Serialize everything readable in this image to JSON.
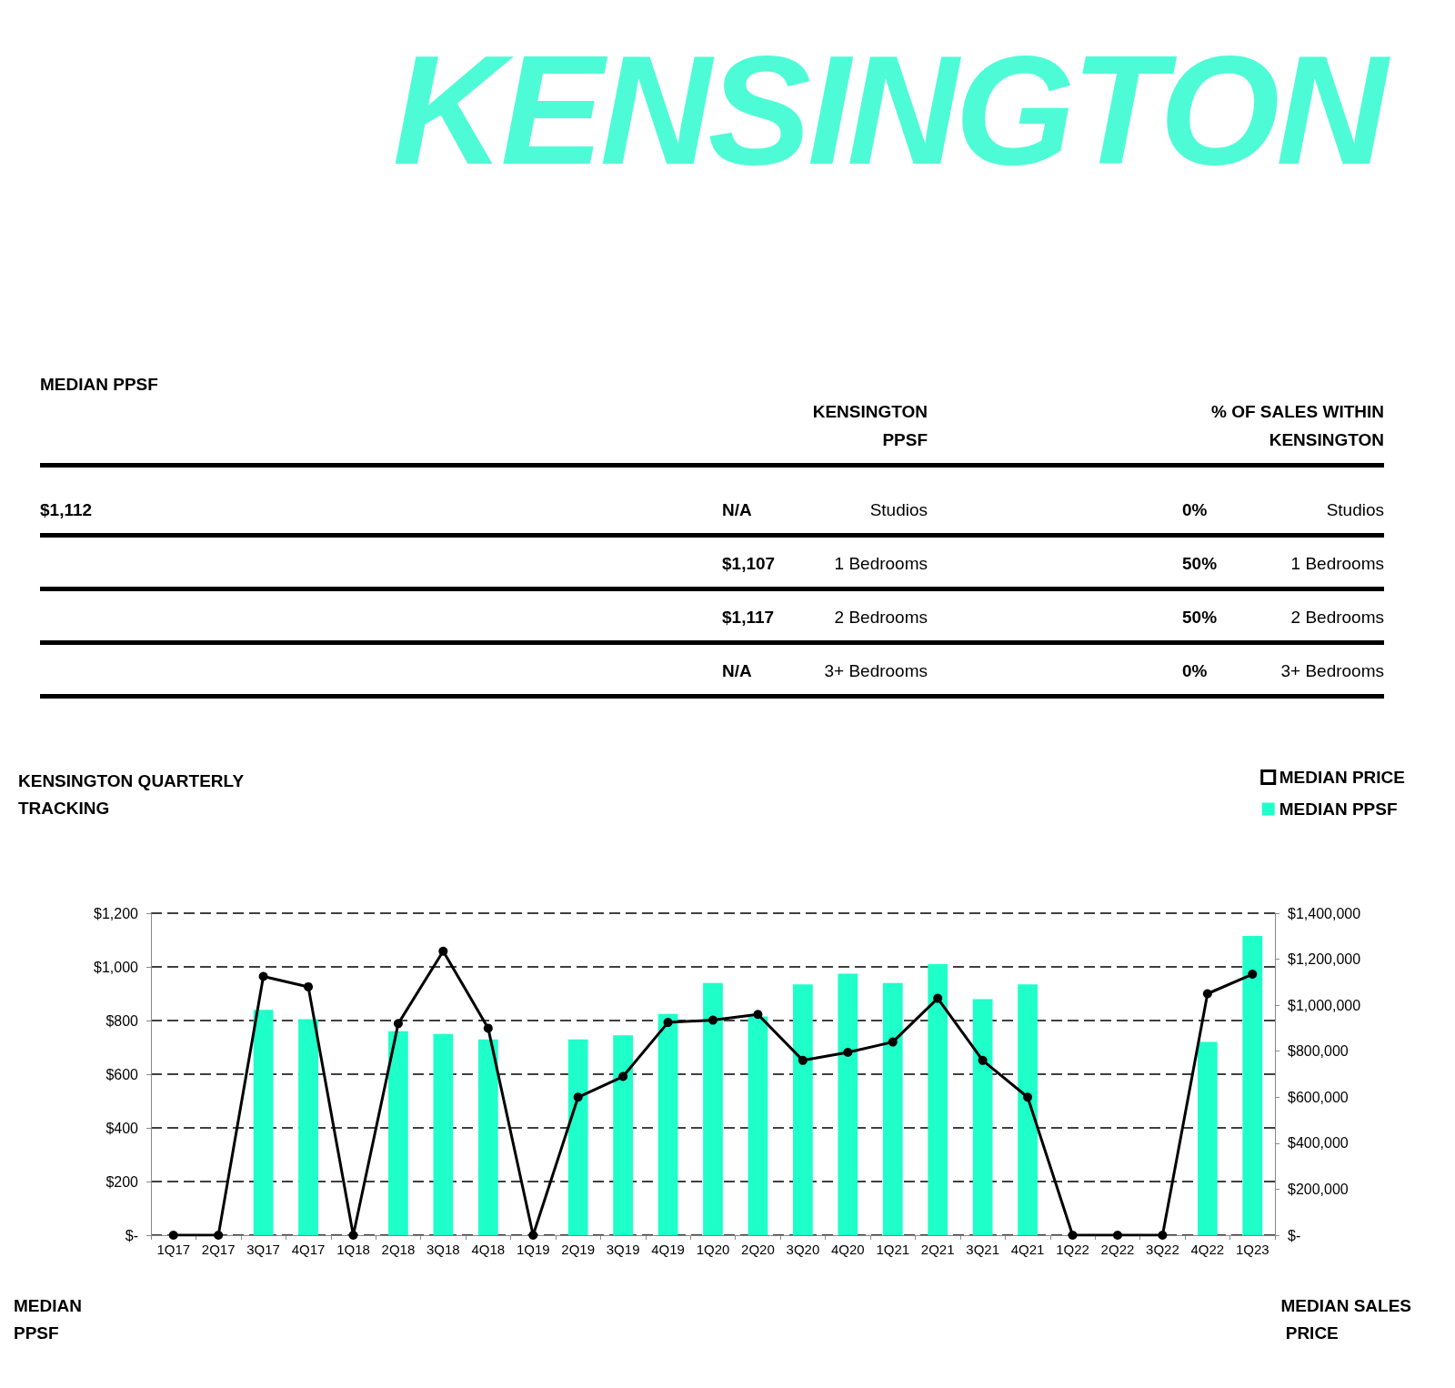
{
  "chart_data": [
    {
      "type": "other",
      "title": "KENSINGTON",
      "annotations": [
        "MEDIAN PPSF",
        "KENSINGTON PPSF",
        "% OF SALES WITHIN KENSINGTON",
        "$1,112",
        "N/A",
        "Studios",
        "0%",
        "Studios",
        "$1,107",
        "1 Bedrooms",
        "50%",
        "1 Bedrooms",
        "$1,117",
        "2 Bedrooms",
        "50%",
        "2 Bedrooms",
        "N/A",
        "3+ Bedrooms",
        "0%",
        "3+ Bedrooms"
      ]
    },
    {
      "type": "bar",
      "title": "KENSINGTON QUARTERLY TRACKING",
      "ylabel": "MEDIAN PPSF",
      "y2label": "MEDIAN SALES PRICE",
      "categories": [
        "1Q17",
        "2Q17",
        "3Q17",
        "4Q17",
        "1Q18",
        "2Q18",
        "3Q18",
        "4Q18",
        "1Q19",
        "2Q19",
        "3Q19",
        "4Q19",
        "1Q20",
        "2Q20",
        "3Q20",
        "4Q20",
        "1Q21",
        "2Q21",
        "3Q21",
        "4Q21",
        "1Q22",
        "2Q22",
        "3Q22",
        "4Q22",
        "1Q23"
      ],
      "series": [
        {
          "name": "MEDIAN PRICE",
          "type": "line",
          "axis": "y2",
          "color": "#000000",
          "values": [
            0,
            0,
            1125000,
            1080000,
            0,
            920000,
            1235000,
            900000,
            0,
            600000,
            690000,
            925000,
            935000,
            960000,
            760000,
            795000,
            840000,
            1030000,
            760000,
            600000,
            0,
            0,
            0,
            1050000,
            1135000
          ]
        },
        {
          "name": "MEDIAN PPSF",
          "color": "#1effc9",
          "values": [
            null,
            null,
            840,
            805,
            null,
            760,
            750,
            730,
            null,
            730,
            745,
            825,
            940,
            815,
            935,
            975,
            940,
            1010,
            880,
            935,
            null,
            null,
            null,
            720,
            1115
          ]
        }
      ],
      "ylim": [
        0,
        1200
      ],
      "yticks": [
        {
          "value": 0,
          "label": "$-"
        },
        {
          "value": 200,
          "label": "$200"
        },
        {
          "value": 400,
          "label": "$400"
        },
        {
          "value": 600,
          "label": "$600"
        },
        {
          "value": 800,
          "label": "$800"
        },
        {
          "value": 1000,
          "label": "$1,000"
        },
        {
          "value": 1200,
          "label": "$1,200"
        }
      ],
      "y2lim": [
        0,
        1400000
      ],
      "y2ticks": [
        {
          "value": 0,
          "label": "$-"
        },
        {
          "value": 200000,
          "label": "$200,000"
        },
        {
          "value": 400000,
          "label": "$400,000"
        },
        {
          "value": 600000,
          "label": "$600,000"
        },
        {
          "value": 800000,
          "label": "$800,000"
        },
        {
          "value": 1000000,
          "label": "$1,000,000"
        },
        {
          "value": 1200000,
          "label": "$1,200,000"
        },
        {
          "value": 1400000,
          "label": "$1,400,000"
        }
      ],
      "grid": "y",
      "legend": "top right",
      "marker": "circle",
      "line_style": "solid"
    }
  ]
}
